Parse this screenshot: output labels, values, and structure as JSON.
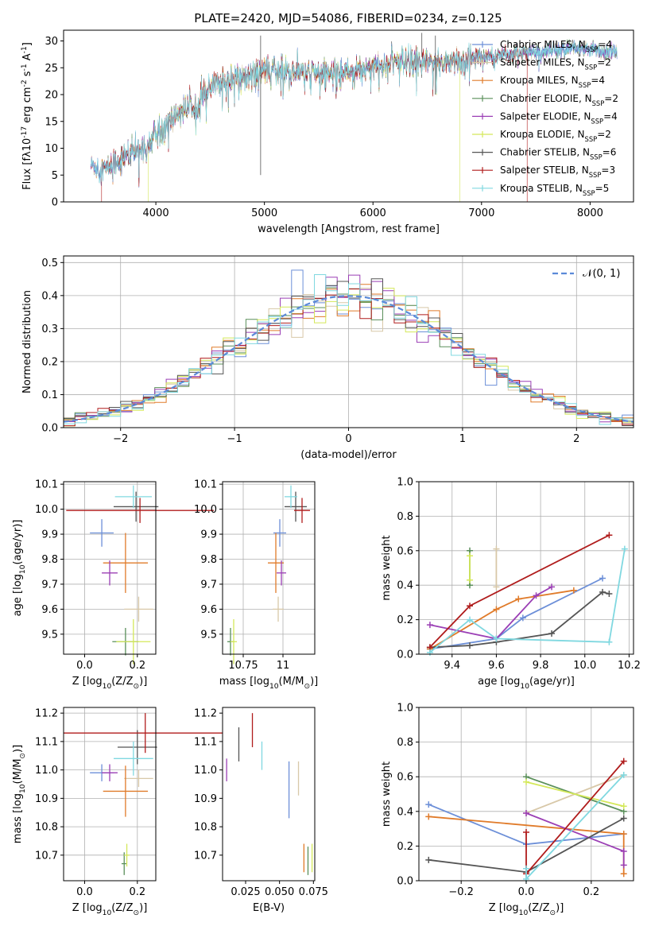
{
  "figure": {
    "title": "PLATE=2420, MJD=54086, FIBERID=0234, z=0.125"
  },
  "legend_labels": [
    "Chabrier MILES, N$_{SSP}$=4",
    "Salpeter MILES, N$_{SSP}$=2",
    "Kroupa MILES, N$_{SSP}$=4",
    "Chabrier ELODIE, N$_{SSP}$=2",
    "Salpeter ELODIE, N$_{SSP}$=4",
    "Kroupa ELODIE, N$_{SSP}$=2",
    "Chabrier STELIB, N$_{SSP}$=6",
    "Salpeter STELIB, N$_{SSP}$=3",
    "Kroupa STELIB, N$_{SSP}$=5"
  ],
  "model_colors": [
    "#6c8fd8",
    "#d8c8a8",
    "#e07b2a",
    "#5a8f5a",
    "#9b3fb5",
    "#d4e85a",
    "#555555",
    "#b01c1c",
    "#80d8e0"
  ],
  "chart_data": [
    {
      "id": "spectrum",
      "type": "line",
      "title": "PLATE=2420, MJD=54086, FIBERID=0234, z=0.125",
      "xlabel": "wavelength [Angstrom, rest frame]",
      "ylabel": "Flux [f_λ10^{-17} erg cm^{-2} s^{-1} A^{-1}]",
      "xlim": [
        3150,
        8400
      ],
      "ylim": [
        0,
        32
      ],
      "xticks": [
        4000,
        5000,
        6000,
        7000,
        8000
      ],
      "yticks": [
        0,
        5,
        10,
        15,
        20,
        25,
        30
      ],
      "legend": "top-right",
      "grid": false,
      "envelope_x": [
        3400,
        3550,
        3650,
        3800,
        3900,
        4000,
        4100,
        4200,
        4300,
        4400,
        4500,
        4600,
        4700,
        4800,
        4900,
        5000,
        5200,
        5400,
        5600,
        5800,
        6000,
        6200,
        6400,
        6600,
        6800,
        7000,
        7200,
        7400,
        7600,
        7800,
        8000,
        8100,
        8200
      ],
      "envelope_y": [
        6.8,
        6.2,
        7.8,
        9.2,
        10.5,
        12.5,
        14.5,
        16.5,
        17.5,
        19.0,
        21.0,
        22.5,
        23.0,
        23.5,
        24.0,
        24.5,
        24.5,
        24.0,
        24.0,
        24.5,
        25.5,
        26.0,
        25.8,
        26.0,
        26.5,
        27.0,
        27.5,
        28.0,
        28.0,
        28.5,
        28.5,
        28.0,
        28.0
      ]
    },
    {
      "id": "residuals",
      "type": "bar",
      "xlabel": "(data-model)/error",
      "ylabel": "Normed distribution",
      "xlim": [
        -2.5,
        2.5
      ],
      "ylim": [
        0,
        0.52
      ],
      "xticks": [
        -2,
        -1,
        0,
        1,
        2
      ],
      "yticks": [
        0,
        0.1,
        0.2,
        0.3,
        0.4,
        0.5
      ],
      "legend": "top-right",
      "grid": true,
      "legend_label": "$\\mathcal{N}(0, 1)$",
      "bin_width": 0.1
    },
    {
      "id": "age_vs_Z",
      "type": "scatter",
      "xlabel": "Z [log$_{10}$(Z/Z$_\\odot$)]",
      "ylabel": "age  [log$_{10}$(age/yr)]",
      "xlim": [
        -0.08,
        0.27
      ],
      "ylim": [
        9.42,
        10.11
      ],
      "xticks": [
        0.0,
        0.2
      ],
      "yticks": [
        9.5,
        9.6,
        9.7,
        9.8,
        9.9,
        10.0,
        10.1
      ],
      "grid": true,
      "points": [
        {
          "x": 0.065,
          "y": 9.905,
          "xerr": 0.045,
          "yerr": 0.055
        },
        {
          "x": 0.205,
          "y": 9.6,
          "xerr": 0.055,
          "yerr": 0.05
        },
        {
          "x": 0.155,
          "y": 9.785,
          "xerr": 0.085,
          "yerr": 0.12
        },
        {
          "x": 0.155,
          "y": 9.47,
          "xerr": 0.05,
          "yerr": 0.055
        },
        {
          "x": 0.095,
          "y": 9.745,
          "xerr": 0.03,
          "yerr": 0.05
        },
        {
          "x": 0.185,
          "y": 9.47,
          "xerr": 0.065,
          "yerr": 0.09
        },
        {
          "x": 0.195,
          "y": 10.01,
          "xerr": 0.085,
          "yerr": 0.06
        },
        {
          "x": 0.21,
          "y": 9.995,
          "xerr": 0.28,
          "yerr": 0.05
        },
        {
          "x": 0.185,
          "y": 10.05,
          "xerr": 0.07,
          "yerr": 0.045
        }
      ]
    },
    {
      "id": "age_vs_mass",
      "type": "scatter",
      "xlabel": "mass [log$_{10}$(M/M$_\\odot$)]",
      "ylabel": "",
      "xlim": [
        10.62,
        11.2
      ],
      "ylim": [
        9.42,
        10.11
      ],
      "xticks": [
        10.75,
        11.0
      ],
      "yticks": [
        9.5,
        9.6,
        9.7,
        9.8,
        9.9,
        10.0,
        10.1
      ],
      "grid": true,
      "points": [
        {
          "x": 10.98,
          "y": 9.905,
          "xerr": 0.04,
          "yerr": 0.055
        },
        {
          "x": 10.97,
          "y": 9.6,
          "xerr": 0.035,
          "yerr": 0.05
        },
        {
          "x": 10.955,
          "y": 9.785,
          "xerr": 0.05,
          "yerr": 0.12
        },
        {
          "x": 10.67,
          "y": 9.47,
          "xerr": 0.02,
          "yerr": 0.055
        },
        {
          "x": 10.99,
          "y": 9.745,
          "xerr": 0.03,
          "yerr": 0.05
        },
        {
          "x": 10.69,
          "y": 9.47,
          "xerr": 0.02,
          "yerr": 0.09
        },
        {
          "x": 11.08,
          "y": 10.01,
          "xerr": 0.07,
          "yerr": 0.06
        },
        {
          "x": 11.12,
          "y": 9.995,
          "xerr": 0.05,
          "yerr": 0.05
        },
        {
          "x": 11.05,
          "y": 10.05,
          "xerr": 0.04,
          "yerr": 0.045
        }
      ]
    },
    {
      "id": "weight_vs_age",
      "type": "line",
      "xlabel": "age  [log$_{10}$(age/yr)]",
      "ylabel": "mass weight",
      "xlim": [
        9.25,
        10.22
      ],
      "ylim": [
        0,
        1.0
      ],
      "xticks": [
        9.4,
        9.6,
        9.8,
        10.0,
        10.2
      ],
      "yticks": [
        0.0,
        0.2,
        0.4,
        0.6,
        0.8,
        1.0
      ],
      "grid": true,
      "series": [
        {
          "x": [
            9.3,
            9.6,
            9.72,
            10.08
          ],
          "y": [
            0.03,
            0.09,
            0.21,
            0.44
          ]
        },
        {
          "x": [
            9.6,
            9.6
          ],
          "y": [
            0.39,
            0.61
          ]
        },
        {
          "x": [
            9.3,
            9.6,
            9.7,
            9.95
          ],
          "y": [
            0.03,
            0.26,
            0.32,
            0.37
          ]
        },
        {
          "x": [
            9.48,
            9.48
          ],
          "y": [
            0.4,
            0.6
          ]
        },
        {
          "x": [
            9.3,
            9.6,
            9.78,
            9.85
          ],
          "y": [
            0.17,
            0.09,
            0.34,
            0.39
          ]
        },
        {
          "x": [
            9.48,
            9.48
          ],
          "y": [
            0.43,
            0.57
          ]
        },
        {
          "x": [
            9.3,
            9.48,
            9.6,
            9.85,
            10.08,
            10.11
          ],
          "y": [
            0.04,
            0.05,
            0.07,
            0.12,
            0.36,
            0.35
          ]
        },
        {
          "x": [
            9.3,
            9.48,
            10.11
          ],
          "y": [
            0.04,
            0.28,
            0.69
          ]
        },
        {
          "x": [
            9.3,
            9.48,
            9.6,
            10.11,
            10.18
          ],
          "y": [
            0.01,
            0.2,
            0.09,
            0.07,
            0.61
          ]
        }
      ]
    },
    {
      "id": "mass_vs_Z",
      "type": "scatter",
      "xlabel": "Z [log$_{10}$(Z/Z$_\\odot$)]",
      "ylabel": "mass [log$_{10}$(M/M$_\\odot$)]",
      "xlim": [
        -0.08,
        0.27
      ],
      "ylim": [
        10.61,
        11.22
      ],
      "xticks": [
        0.0,
        0.2
      ],
      "yticks": [
        10.7,
        10.8,
        10.9,
        11.0,
        11.1,
        11.2
      ],
      "grid": true,
      "points": [
        {
          "x": 0.065,
          "y": 10.99,
          "xerr": 0.045,
          "yerr": 0.03
        },
        {
          "x": 0.205,
          "y": 10.97,
          "xerr": 0.055,
          "yerr": 0.03
        },
        {
          "x": 0.155,
          "y": 10.925,
          "xerr": 0.085,
          "yerr": 0.09
        },
        {
          "x": 0.15,
          "y": 10.67,
          "xerr": 0.01,
          "yerr": 0.04
        },
        {
          "x": 0.095,
          "y": 10.99,
          "xerr": 0.03,
          "yerr": 0.03
        },
        {
          "x": 0.16,
          "y": 10.7,
          "xerr": 0.01,
          "yerr": 0.04
        },
        {
          "x": 0.2,
          "y": 11.08,
          "xerr": 0.075,
          "yerr": 0.06
        },
        {
          "x": 0.23,
          "y": 11.13,
          "xerr": 0.31,
          "yerr": 0.07
        },
        {
          "x": 0.185,
          "y": 11.04,
          "xerr": 0.075,
          "yerr": 0.06
        }
      ]
    },
    {
      "id": "mass_vs_ebv",
      "type": "scatter",
      "xlabel": "E(B-V)",
      "ylabel": "",
      "xlim": [
        0.008,
        0.076
      ],
      "ylim": [
        10.61,
        11.22
      ],
      "xticks": [
        0.025,
        0.05,
        0.075
      ],
      "yticks": [
        10.7,
        10.8,
        10.9,
        11.0,
        11.1,
        11.2
      ],
      "grid": false,
      "points": [
        {
          "x": 0.057,
          "y": 10.93,
          "yerr": 0.1
        },
        {
          "x": 0.064,
          "y": 10.97,
          "yerr": 0.06
        },
        {
          "x": 0.068,
          "y": 10.69,
          "yerr": 0.05
        },
        {
          "x": 0.071,
          "y": 10.68,
          "yerr": 0.05
        },
        {
          "x": 0.011,
          "y": 11.0,
          "yerr": 0.04
        },
        {
          "x": 0.074,
          "y": 10.69,
          "yerr": 0.05
        },
        {
          "x": 0.02,
          "y": 11.09,
          "yerr": 0.06
        },
        {
          "x": 0.03,
          "y": 11.14,
          "yerr": 0.06
        },
        {
          "x": 0.037,
          "y": 11.05,
          "yerr": 0.05
        }
      ]
    },
    {
      "id": "weight_vs_Z",
      "type": "line",
      "xlabel": "Z [log$_{10}$(Z/Z$_\\odot$)]",
      "ylabel": "mass weight",
      "xlim": [
        -0.33,
        0.33
      ],
      "ylim": [
        0,
        1.0
      ],
      "xticks": [
        -0.2,
        0.0,
        0.2
      ],
      "yticks": [
        0.0,
        0.2,
        0.4,
        0.6,
        0.8,
        1.0
      ],
      "grid": true,
      "series": [
        {
          "x": [
            -0.3,
            0.0,
            0.3
          ],
          "y": [
            0.44,
            0.21,
            0.27
          ]
        },
        {
          "x": [
            0.0,
            0.3
          ],
          "y": [
            0.39,
            0.61
          ]
        },
        {
          "x": [
            -0.3,
            0.3,
            0.3
          ],
          "y": [
            0.37,
            0.27,
            0.04
          ]
        },
        {
          "x": [
            0.0,
            0.3
          ],
          "y": [
            0.6,
            0.4
          ]
        },
        {
          "x": [
            0.0,
            0.3,
            0.3
          ],
          "y": [
            0.39,
            0.17,
            0.09
          ]
        },
        {
          "x": [
            0.0,
            0.3
          ],
          "y": [
            0.57,
            0.43
          ]
        },
        {
          "x": [
            -0.3,
            0.0,
            0.3
          ],
          "y": [
            0.12,
            0.05,
            0.36
          ]
        },
        {
          "x": [
            0.0,
            0.0,
            0.3
          ],
          "y": [
            0.28,
            0.04,
            0.69
          ]
        },
        {
          "x": [
            0.0,
            0.0,
            0.3
          ],
          "y": [
            0.07,
            0.01,
            0.61
          ]
        }
      ]
    }
  ]
}
